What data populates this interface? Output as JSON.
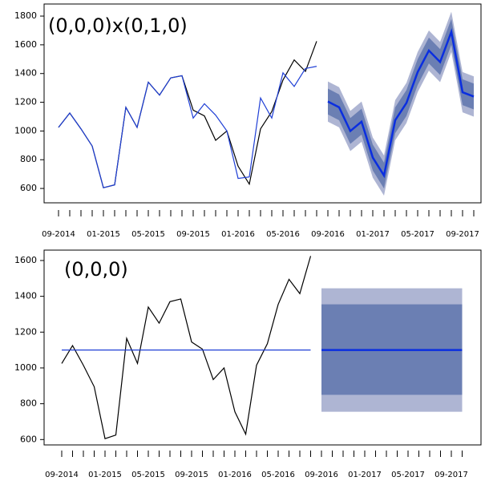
{
  "chart_data": [
    {
      "type": "line",
      "annotation": "(0,0,0)x(0,1,0)",
      "categories": [
        "09-2014",
        null,
        null,
        null,
        "01-2015",
        null,
        null,
        null,
        "05-2015",
        null,
        null,
        null,
        "09-2015",
        null,
        null,
        null,
        "01-2016",
        null,
        null,
        null,
        "05-2016",
        null,
        null,
        null,
        "09-2016",
        null,
        null,
        null,
        "01-2017",
        null,
        null,
        null,
        "05-2017",
        null,
        null,
        null,
        "09-2017",
        null
      ],
      "ylim": [
        500,
        1884
      ],
      "yticks": [
        600,
        800,
        1000,
        1200,
        1400,
        1600,
        1800
      ],
      "series": [
        {
          "color": "#000000",
          "width": 1.2,
          "values": [
            1025,
            1125,
            1015,
            895,
            605,
            625,
            1165,
            1025,
            1340,
            1250,
            1370,
            1385,
            1145,
            1105,
            935,
            1000,
            755,
            630,
            1015,
            1135,
            1355,
            1495,
            1415,
            1625,
            null,
            null,
            null,
            null,
            null,
            null,
            null,
            null,
            null,
            null,
            null,
            null,
            null,
            null
          ]
        },
        {
          "color": "#1f3fd6",
          "width": 1.2,
          "values": [
            1025,
            1125,
            1015,
            895,
            605,
            625,
            1165,
            1025,
            1340,
            1250,
            1370,
            1385,
            1090,
            1190,
            1110,
            1000,
            670,
            680,
            1230,
            1090,
            1405,
            1310,
            1435,
            1450,
            null,
            null,
            null,
            null,
            null,
            null,
            null,
            null,
            null,
            null,
            null,
            null,
            null,
            null
          ]
        },
        {
          "color": "#0a2ee0",
          "width": 2.5,
          "values": [
            null,
            null,
            null,
            null,
            null,
            null,
            null,
            null,
            null,
            null,
            null,
            null,
            null,
            null,
            null,
            null,
            null,
            null,
            null,
            null,
            null,
            null,
            null,
            null,
            1205,
            1165,
            1000,
            1065,
            815,
            690,
            1075,
            1195,
            1410,
            1560,
            1480,
            1690,
            1270,
            1240
          ]
        }
      ],
      "bands": [
        {
          "color": "#aeb5d3",
          "lower": [
            null,
            null,
            null,
            null,
            null,
            null,
            null,
            null,
            null,
            null,
            null,
            null,
            null,
            null,
            null,
            null,
            null,
            null,
            null,
            null,
            null,
            null,
            null,
            null,
            1065,
            1025,
            860,
            925,
            675,
            550,
            935,
            1055,
            1270,
            1420,
            1340,
            1550,
            1130,
            1100
          ],
          "upper": [
            null,
            null,
            null,
            null,
            null,
            null,
            null,
            null,
            null,
            null,
            null,
            null,
            null,
            null,
            null,
            null,
            null,
            null,
            null,
            null,
            null,
            null,
            null,
            null,
            1345,
            1305,
            1140,
            1205,
            955,
            830,
            1215,
            1335,
            1550,
            1700,
            1620,
            1830,
            1410,
            1380
          ]
        },
        {
          "color": "#6b7fb3",
          "lower": [
            null,
            null,
            null,
            null,
            null,
            null,
            null,
            null,
            null,
            null,
            null,
            null,
            null,
            null,
            null,
            null,
            null,
            null,
            null,
            null,
            null,
            null,
            null,
            null,
            1115,
            1075,
            910,
            975,
            725,
            600,
            985,
            1105,
            1320,
            1470,
            1390,
            1600,
            1180,
            1150
          ],
          "upper": [
            null,
            null,
            null,
            null,
            null,
            null,
            null,
            null,
            null,
            null,
            null,
            null,
            null,
            null,
            null,
            null,
            null,
            null,
            null,
            null,
            null,
            null,
            null,
            null,
            1295,
            1255,
            1090,
            1155,
            905,
            780,
            1165,
            1285,
            1500,
            1650,
            1570,
            1780,
            1360,
            1330
          ]
        }
      ]
    },
    {
      "type": "line",
      "annotation": "(0,0,0)",
      "categories": [
        "09-2014",
        null,
        null,
        null,
        "01-2015",
        null,
        null,
        null,
        "05-2015",
        null,
        null,
        null,
        "09-2015",
        null,
        null,
        null,
        "01-2016",
        null,
        null,
        null,
        "05-2016",
        null,
        null,
        null,
        "09-2016",
        null,
        null,
        null,
        "01-2017",
        null,
        null,
        null,
        "05-2017",
        null,
        null,
        null,
        "09-2017",
        null
      ],
      "ylim": [
        570,
        1658
      ],
      "yticks": [
        600,
        800,
        1000,
        1200,
        1400,
        1600
      ],
      "series": [
        {
          "color": "#000000",
          "width": 1.2,
          "values": [
            1025,
            1125,
            1015,
            895,
            605,
            625,
            1165,
            1025,
            1340,
            1250,
            1370,
            1385,
            1145,
            1105,
            935,
            1000,
            755,
            630,
            1015,
            1135,
            1355,
            1495,
            1415,
            1625,
            null,
            null,
            null,
            null,
            null,
            null,
            null,
            null,
            null,
            null,
            null,
            null,
            null,
            null
          ]
        },
        {
          "color": "#1f3fd6",
          "width": 1.2,
          "values": [
            1100,
            1100,
            1100,
            1100,
            1100,
            1100,
            1100,
            1100,
            1100,
            1100,
            1100,
            1100,
            1100,
            1100,
            1100,
            1100,
            1100,
            1100,
            1100,
            1100,
            1100,
            1100,
            1100,
            1100,
            null,
            null,
            null,
            null,
            null,
            null,
            null,
            null,
            null,
            null,
            null,
            null,
            null,
            null
          ]
        },
        {
          "color": "#0a2ee0",
          "width": 2.5,
          "values": [
            null,
            null,
            null,
            null,
            null,
            null,
            null,
            null,
            null,
            null,
            null,
            null,
            null,
            null,
            null,
            null,
            null,
            null,
            null,
            null,
            null,
            null,
            null,
            null,
            1100,
            1100,
            1100,
            1100,
            1100,
            1100,
            1100,
            1100,
            1100,
            1100,
            1100,
            1100,
            1100,
            1100
          ]
        }
      ],
      "bands": [
        {
          "color": "#aeb5d3",
          "lower": [
            null,
            null,
            null,
            null,
            null,
            null,
            null,
            null,
            null,
            null,
            null,
            null,
            null,
            null,
            null,
            null,
            null,
            null,
            null,
            null,
            null,
            null,
            null,
            null,
            755,
            755,
            755,
            755,
            755,
            755,
            755,
            755,
            755,
            755,
            755,
            755,
            755,
            755
          ],
          "upper": [
            null,
            null,
            null,
            null,
            null,
            null,
            null,
            null,
            null,
            null,
            null,
            null,
            null,
            null,
            null,
            null,
            null,
            null,
            null,
            null,
            null,
            null,
            null,
            null,
            1445,
            1445,
            1445,
            1445,
            1445,
            1445,
            1445,
            1445,
            1445,
            1445,
            1445,
            1445,
            1445,
            1445
          ]
        },
        {
          "color": "#6b7fb3",
          "lower": [
            null,
            null,
            null,
            null,
            null,
            null,
            null,
            null,
            null,
            null,
            null,
            null,
            null,
            null,
            null,
            null,
            null,
            null,
            null,
            null,
            null,
            null,
            null,
            null,
            850,
            850,
            850,
            850,
            850,
            850,
            850,
            850,
            850,
            850,
            850,
            850,
            850,
            850
          ],
          "upper": [
            null,
            null,
            null,
            null,
            null,
            null,
            null,
            null,
            null,
            null,
            null,
            null,
            null,
            null,
            null,
            null,
            null,
            null,
            null,
            null,
            null,
            null,
            null,
            null,
            1355,
            1355,
            1355,
            1355,
            1355,
            1355,
            1355,
            1355,
            1355,
            1355,
            1355,
            1355,
            1355,
            1355
          ]
        }
      ]
    }
  ]
}
